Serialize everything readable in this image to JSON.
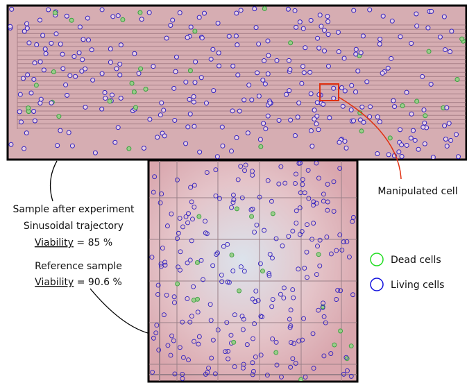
{
  "annotations": {
    "manipulated": "Manipulated cell",
    "sample": {
      "line1": "Sample after experiment",
      "line2": "Sinusoidal trajectory",
      "viability_label": "Viability",
      "viability_value": "= 85 %"
    },
    "reference": {
      "line1": "Reference sample",
      "viability_label": "Viability",
      "viability_value": "= 90.6 %"
    }
  },
  "legend": {
    "dead": "Dead cells",
    "living": "Living cells"
  }
}
